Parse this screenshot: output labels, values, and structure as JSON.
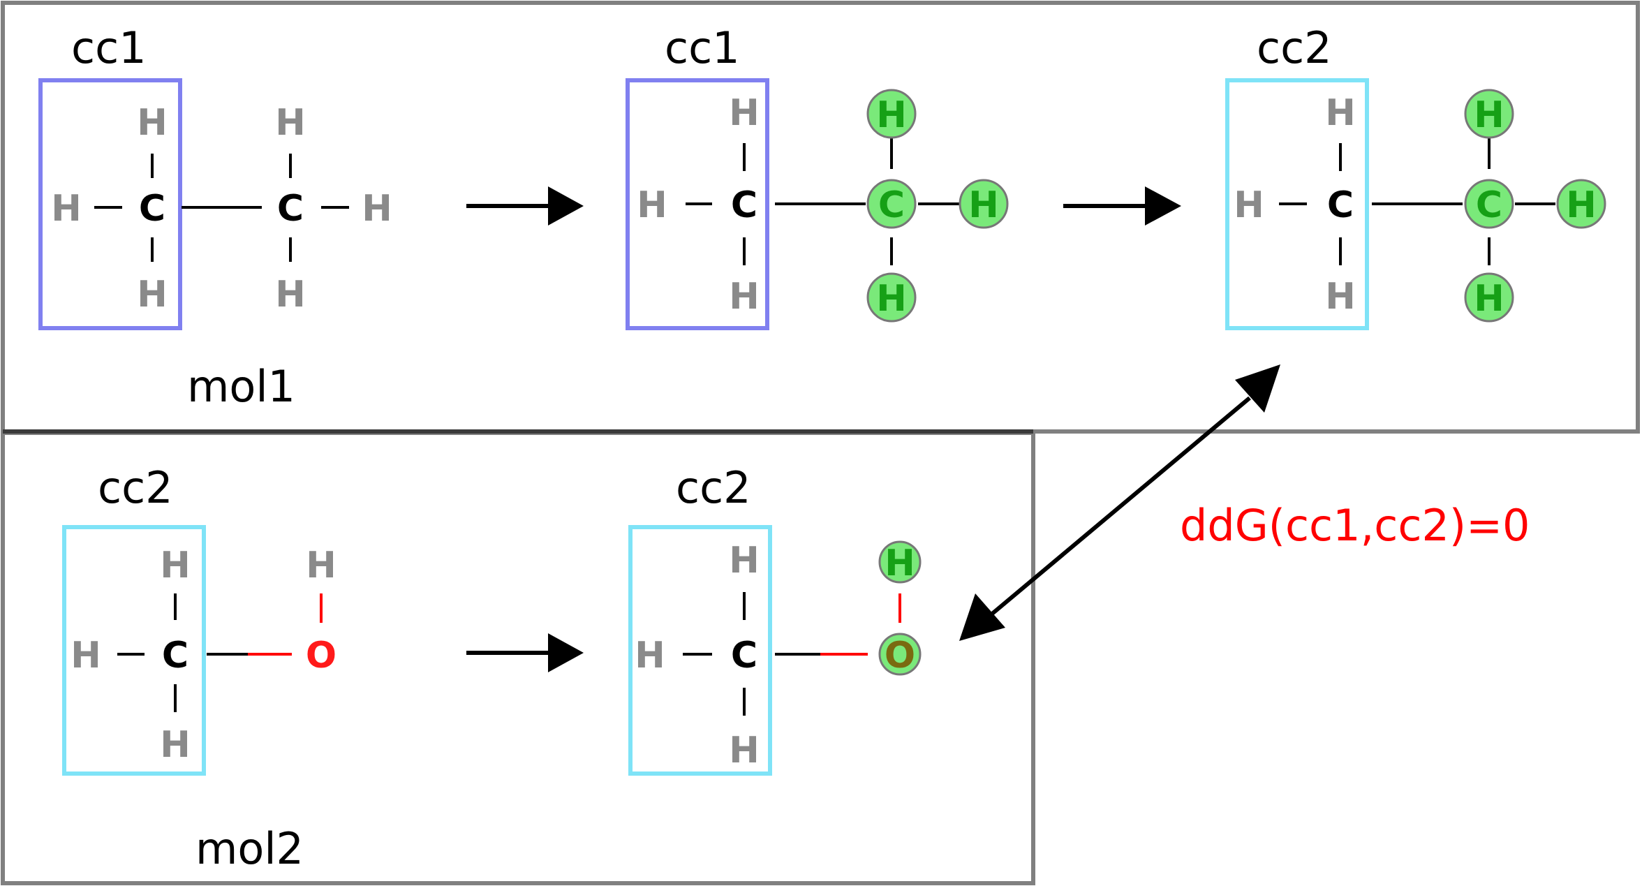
{
  "labels": {
    "cc1": "cc1",
    "cc2": "cc2",
    "mol1": "mol1",
    "mol2": "mol2",
    "ddg": "ddG(cc1,cc2)=0"
  },
  "atoms": {
    "H": "H",
    "C": "C",
    "O": "O"
  },
  "colors": {
    "frame": "#808080",
    "cc1_box": "#8080f0",
    "cc2_box": "#7fe3f7",
    "highlight": "#7ae97a",
    "ddg_text": "#ff0000",
    "oxygen": "#ff1a1a",
    "hydrogen": "#8a8a8a"
  }
}
